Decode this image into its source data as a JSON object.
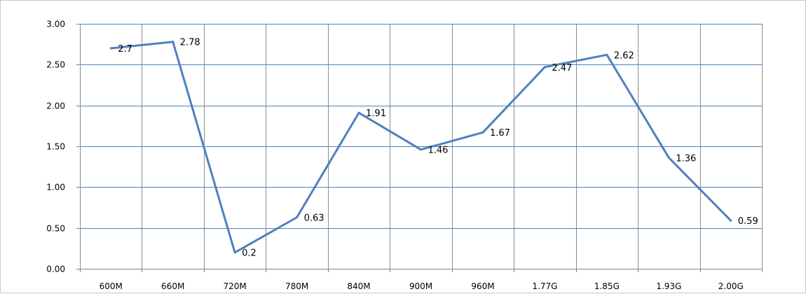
{
  "chart_data": {
    "type": "line",
    "title": "",
    "xlabel": "",
    "ylabel": "",
    "categories": [
      "600M",
      "660M",
      "720M",
      "780M",
      "840M",
      "900M",
      "960M",
      "1.77G",
      "1.85G",
      "1.93G",
      "2.00G"
    ],
    "series": [
      {
        "values": [
          2.7,
          2.78,
          0.2,
          0.63,
          1.91,
          1.46,
          1.67,
          2.47,
          2.62,
          1.36,
          0.59
        ]
      }
    ],
    "data_labels": [
      "2.7",
      "2.78",
      "0.2",
      "0.63",
      "1.91",
      "1.46",
      "1.67",
      "2.47",
      "2.62",
      "1.36",
      "0.59"
    ],
    "y_ticks": [
      "0.00",
      "0.50",
      "1.00",
      "1.50",
      "2.00",
      "2.50",
      "3.00"
    ],
    "ylim": [
      0,
      3
    ],
    "grid": true,
    "legend": "none",
    "colors": {
      "series": "#4f81bd",
      "horizontal_grid": "#4f81bd",
      "vertical_grid": "#8c8c8c"
    }
  }
}
